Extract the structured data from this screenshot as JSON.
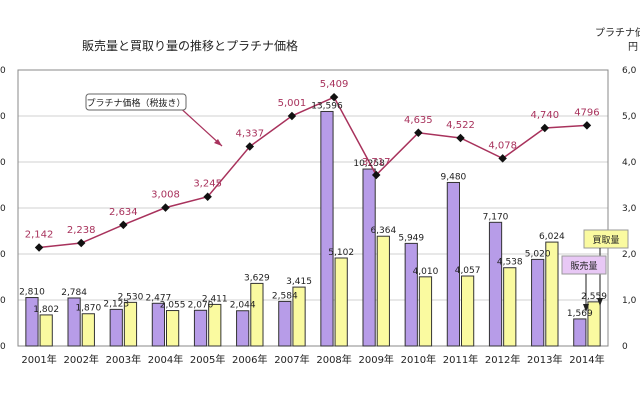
{
  "chart_data": {
    "type": "bar+line",
    "title": "販売量と買取り量の推移とプラチナ価格",
    "categories": [
      "2001年",
      "2002年",
      "2003年",
      "2004年",
      "2005年",
      "2006年",
      "2007年",
      "2008年",
      "2009年",
      "2010年",
      "2011年",
      "2012年",
      "2013年",
      "2014年"
    ],
    "left_axis": {
      "ticks": [
        "0",
        "0",
        "0",
        "0",
        "0",
        "0"
      ],
      "ylim": [
        0,
        16000
      ]
    },
    "right_axis": {
      "label": "プラチナ価",
      "unit": "円",
      "ticks": [
        "0",
        "1,0",
        "2,0",
        "3,0",
        "4,0",
        "5,0",
        "6,0"
      ],
      "ylim": [
        0,
        6000
      ]
    },
    "series": [
      {
        "name": "販売量",
        "kind": "bar",
        "color": "#b79ce8",
        "values": [
          2810,
          2784,
          2123,
          2477,
          2070,
          2044,
          2584,
          13596,
          10258,
          5949,
          9480,
          7170,
          5020,
          1569
        ],
        "labels": [
          "2,810",
          "2,784",
          "2,123",
          "2,477",
          "2,070",
          "2,044",
          "2,584",
          "13,596",
          "10,258",
          "5,949",
          "9,480",
          "7,170",
          "5,020",
          "1,569"
        ]
      },
      {
        "name": "買取量",
        "kind": "bar",
        "color": "#fafaa0",
        "values": [
          1802,
          1870,
          2530,
          2055,
          2411,
          3629,
          3415,
          5102,
          6364,
          4010,
          4057,
          4538,
          6024,
          2559
        ],
        "labels": [
          "1,802",
          "1,870",
          "2,530",
          "2,055",
          "2,411",
          "3,629",
          "3,415",
          "5,102",
          "6,364",
          "4,010",
          "4,057",
          "4,538",
          "6,024",
          "2,559"
        ]
      },
      {
        "name": "プラチナ価格（税抜き）",
        "kind": "line",
        "axis": "right",
        "color": "#a8325c",
        "values": [
          2142,
          2238,
          2634,
          3008,
          3245,
          4337,
          5001,
          5409,
          3717,
          4635,
          4522,
          4078,
          4740,
          4796
        ],
        "labels": [
          "2,142",
          "2,238",
          "2,634",
          "3,008",
          "3,245",
          "4,337",
          "5,001",
          "5,409",
          "3,717",
          "4,635",
          "4,522",
          "4,078",
          "4,740",
          "4796"
        ]
      }
    ],
    "annotations": {
      "price_callout": "プラチナ価格（税抜き）",
      "purchase_callout": "買取量",
      "sales_callout": "販売量"
    }
  }
}
